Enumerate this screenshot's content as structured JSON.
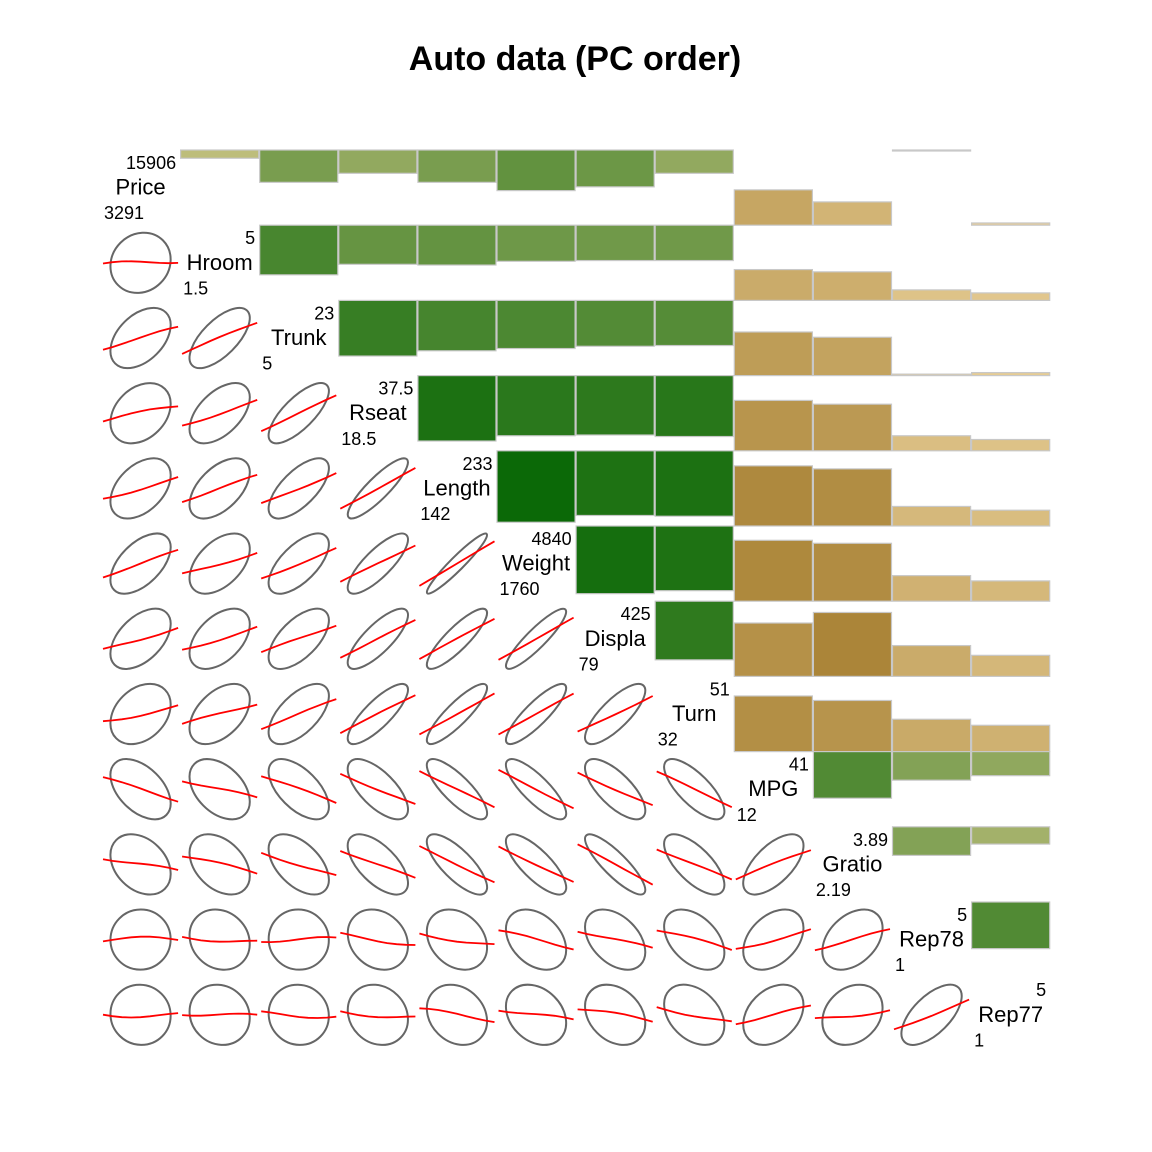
{
  "chart_data": {
    "type": "corrgram",
    "title": "Auto data (PC order)",
    "variables": [
      {
        "name": "Price",
        "max": "15906",
        "min": "3291"
      },
      {
        "name": "Hroom",
        "max": "5",
        "min": "1.5"
      },
      {
        "name": "Trunk",
        "max": "23",
        "min": "5"
      },
      {
        "name": "Rseat",
        "max": "37.5",
        "min": "18.5"
      },
      {
        "name": "Length",
        "max": "233",
        "min": "142"
      },
      {
        "name": "Weight",
        "max": "4840",
        "min": "1760"
      },
      {
        "name": "Displa",
        "max": "425",
        "min": "79"
      },
      {
        "name": "Turn",
        "max": "51",
        "min": "32"
      },
      {
        "name": "MPG",
        "max": "41",
        "min": "12"
      },
      {
        "name": "Gratio",
        "max": "3.89",
        "min": "2.19"
      },
      {
        "name": "Rep78",
        "max": "5",
        "min": "1"
      },
      {
        "name": "Rep77",
        "max": "5",
        "min": "1"
      }
    ],
    "correlations": [
      [
        1.0,
        0.11,
        0.43,
        0.31,
        0.43,
        0.54,
        0.49,
        0.31,
        -0.47,
        -0.31,
        0.01,
        -0.03
      ],
      [
        0.11,
        1.0,
        0.66,
        0.52,
        0.53,
        0.48,
        0.47,
        0.47,
        -0.41,
        -0.38,
        -0.14,
        -0.1
      ],
      [
        0.43,
        0.66,
        1.0,
        0.74,
        0.67,
        0.64,
        0.61,
        0.6,
        -0.58,
        -0.51,
        -0.02,
        -0.04
      ],
      [
        0.31,
        0.52,
        0.74,
        1.0,
        0.87,
        0.8,
        0.79,
        0.81,
        -0.67,
        -0.62,
        -0.2,
        -0.15
      ],
      [
        0.43,
        0.53,
        0.67,
        0.87,
        1.0,
        0.95,
        0.86,
        0.87,
        -0.8,
        -0.76,
        -0.26,
        -0.21
      ],
      [
        0.54,
        0.48,
        0.64,
        0.8,
        0.95,
        1.0,
        0.9,
        0.86,
        -0.81,
        -0.77,
        -0.34,
        -0.27
      ],
      [
        0.49,
        0.47,
        0.61,
        0.79,
        0.86,
        0.9,
        1.0,
        0.78,
        -0.71,
        -0.85,
        -0.41,
        -0.28
      ],
      [
        0.31,
        0.47,
        0.6,
        0.81,
        0.87,
        0.86,
        0.78,
        1.0,
        -0.74,
        -0.68,
        -0.43,
        -0.35
      ],
      [
        -0.47,
        -0.41,
        -0.58,
        -0.67,
        -0.8,
        -0.81,
        -0.71,
        -0.74,
        1.0,
        0.62,
        0.38,
        0.32
      ],
      [
        -0.31,
        -0.38,
        -0.51,
        -0.62,
        -0.76,
        -0.77,
        -0.85,
        -0.68,
        0.62,
        1.0,
        0.38,
        0.23
      ],
      [
        0.01,
        -0.14,
        -0.02,
        -0.2,
        -0.26,
        -0.34,
        -0.41,
        -0.43,
        0.38,
        0.38,
        1.0,
        0.62
      ],
      [
        -0.03,
        -0.1,
        -0.04,
        -0.15,
        -0.21,
        -0.27,
        -0.28,
        -0.35,
        0.32,
        0.23,
        0.62,
        1.0
      ]
    ],
    "lower_panel": "ellipse with smoothed fit line",
    "upper_panel": "bar length and shade proportional to correlation",
    "colors": {
      "ellipse": "#666666",
      "smooth_line": "#ff0000",
      "positive_strong": "#006400",
      "positive_weak": "#d4c88a",
      "negative_weak": "#e8cf98",
      "negative_strong": "#a07828",
      "bar_border": "#c8c8c8"
    }
  }
}
